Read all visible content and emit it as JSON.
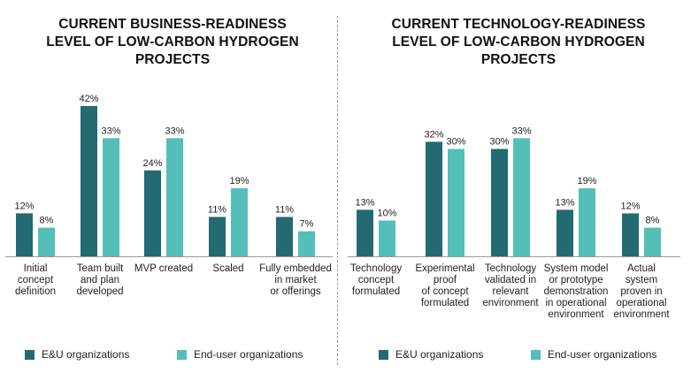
{
  "chart_data": [
    {
      "type": "bar",
      "title_lines": [
        "CURRENT BUSINESS-READINESS",
        "LEVEL OF LOW-CARBON HYDROGEN",
        "PROJECTS"
      ],
      "categories": [
        [
          "Initial",
          "concept",
          "definition"
        ],
        [
          "Team built",
          "and plan",
          "developed"
        ],
        [
          "MVP created"
        ],
        [
          "Scaled"
        ],
        [
          "Fully embedded",
          "in market",
          "or offerings"
        ]
      ],
      "series": [
        {
          "name": "E&U organizations",
          "values": [
            12,
            42,
            24,
            11,
            11
          ],
          "labels": [
            "12%",
            "42%",
            "24%",
            "11%",
            "11%"
          ]
        },
        {
          "name": "End-user organizations",
          "values": [
            8,
            33,
            33,
            19,
            7
          ],
          "labels": [
            "8%",
            "33%",
            "33%",
            "19%",
            "7%"
          ]
        }
      ],
      "ylim": [
        0,
        42
      ],
      "grid": false,
      "legend_position": "bottom"
    },
    {
      "type": "bar",
      "title_lines": [
        "CURRENT TECHNOLOGY-READINESS",
        "LEVEL OF LOW-CARBON HYDROGEN",
        "PROJECTS"
      ],
      "categories": [
        [
          "Technology",
          "concept",
          "formulated"
        ],
        [
          "Experimental",
          "proof",
          "of concept",
          "formulated"
        ],
        [
          "Technology",
          "validated in",
          "relevant",
          "environment"
        ],
        [
          "System model",
          "or prototype",
          "demonstration",
          "in operational",
          "environment"
        ],
        [
          "Actual",
          "system",
          "proven in",
          "operational",
          "environment"
        ]
      ],
      "series": [
        {
          "name": "E&U organizations",
          "values": [
            13,
            32,
            30,
            13,
            12
          ],
          "labels": [
            "13%",
            "32%",
            "30%",
            "13%",
            "12%"
          ]
        },
        {
          "name": "End-user organizations",
          "values": [
            10,
            30,
            33,
            19,
            8
          ],
          "labels": [
            "10%",
            "30%",
            "33%",
            "19%",
            "8%"
          ]
        }
      ],
      "ylim": [
        0,
        42
      ],
      "grid": false,
      "legend_position": "bottom"
    }
  ],
  "colors": {
    "eu": "#236a72",
    "enduser": "#54bfb8"
  },
  "legend": {
    "eu_label": "E&U organizations",
    "enduser_label": "End-user organizations"
  }
}
